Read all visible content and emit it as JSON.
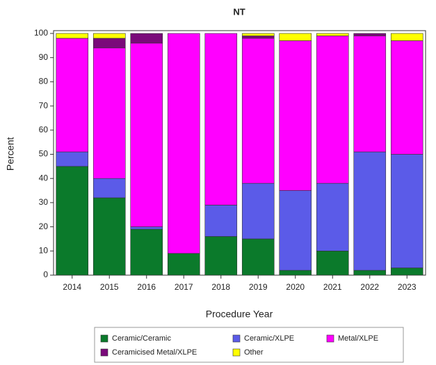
{
  "chart_data": {
    "type": "stacked_bar",
    "title": "NT",
    "x_label": "Procedure Year",
    "y_label": "Percent",
    "categories": [
      "2014",
      "2015",
      "2016",
      "2017",
      "2018",
      "2019",
      "2020",
      "2021",
      "2022",
      "2023"
    ],
    "series": [
      {
        "name": "Ceramic/Ceramic",
        "color": "#0b7a2b",
        "values": [
          45,
          32,
          19,
          9,
          16,
          15,
          2,
          10,
          2,
          3
        ]
      },
      {
        "name": "Ceramic/XLPE",
        "color": "#5b5be8",
        "values": [
          6,
          8,
          1,
          0,
          13,
          23,
          33,
          28,
          49,
          47
        ]
      },
      {
        "name": "Metal/XLPE",
        "color": "#ff00ff",
        "values": [
          47,
          54,
          76,
          91,
          71,
          60,
          62,
          61,
          48,
          47
        ]
      },
      {
        "name": "Ceramicised Metal/XLPE",
        "color": "#7a0a7a",
        "values": [
          0,
          4,
          4,
          0,
          0,
          1,
          0,
          0,
          1,
          0
        ]
      },
      {
        "name": "Other",
        "color": "#ffff00",
        "values": [
          2,
          2,
          0,
          0,
          0,
          1,
          3,
          1,
          0,
          3
        ]
      }
    ],
    "ylim": [
      0,
      100
    ],
    "yticks": [
      0,
      10,
      20,
      30,
      40,
      50,
      60,
      70,
      80,
      90,
      100
    ]
  }
}
